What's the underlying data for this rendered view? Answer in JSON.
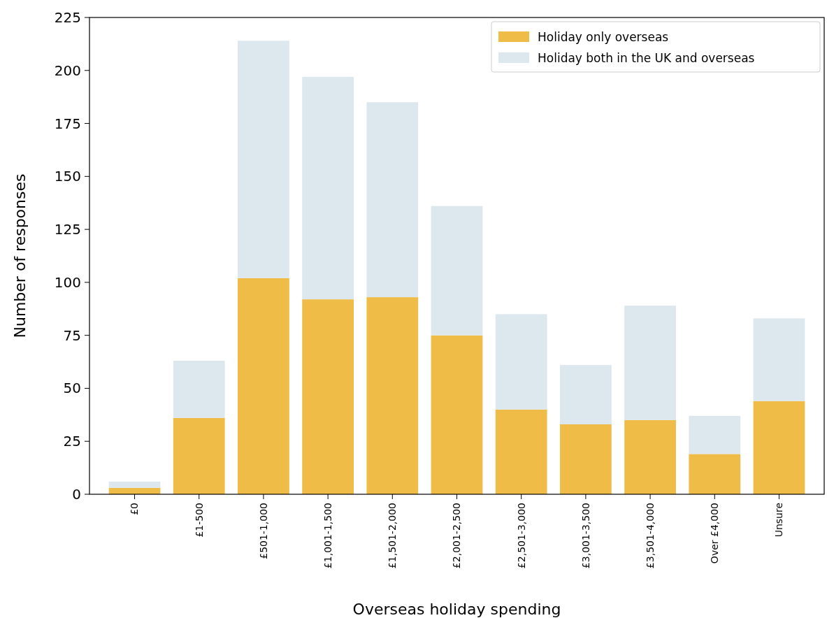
{
  "chart_data": {
    "type": "bar",
    "stacked": true,
    "xlabel": "Overseas holiday spending",
    "ylabel": "Number of responses",
    "categories": [
      "£0",
      "£1-500",
      "£501-1,000",
      "£1,001-1,500",
      "£1,501-2,000",
      "£2,001-2,500",
      "£2,501-3,000",
      "£3,001-3,500",
      "£3,501-4,000",
      "Over £4,000",
      "Unsure"
    ],
    "series": [
      {
        "name": "Holiday only overseas",
        "color": "#f0bc48",
        "values": [
          3,
          36,
          102,
          92,
          93,
          75,
          40,
          33,
          35,
          19,
          44
        ]
      },
      {
        "name": "Holiday both in the UK and overseas",
        "color": "#dde7ee",
        "values": [
          3,
          27,
          112,
          105,
          92,
          61,
          45,
          28,
          54,
          18,
          39
        ]
      }
    ],
    "ylim": [
      0,
      225
    ],
    "yticks": [
      0,
      25,
      50,
      75,
      100,
      125,
      150,
      175,
      200,
      225
    ],
    "grid": false,
    "legend": "top right"
  }
}
